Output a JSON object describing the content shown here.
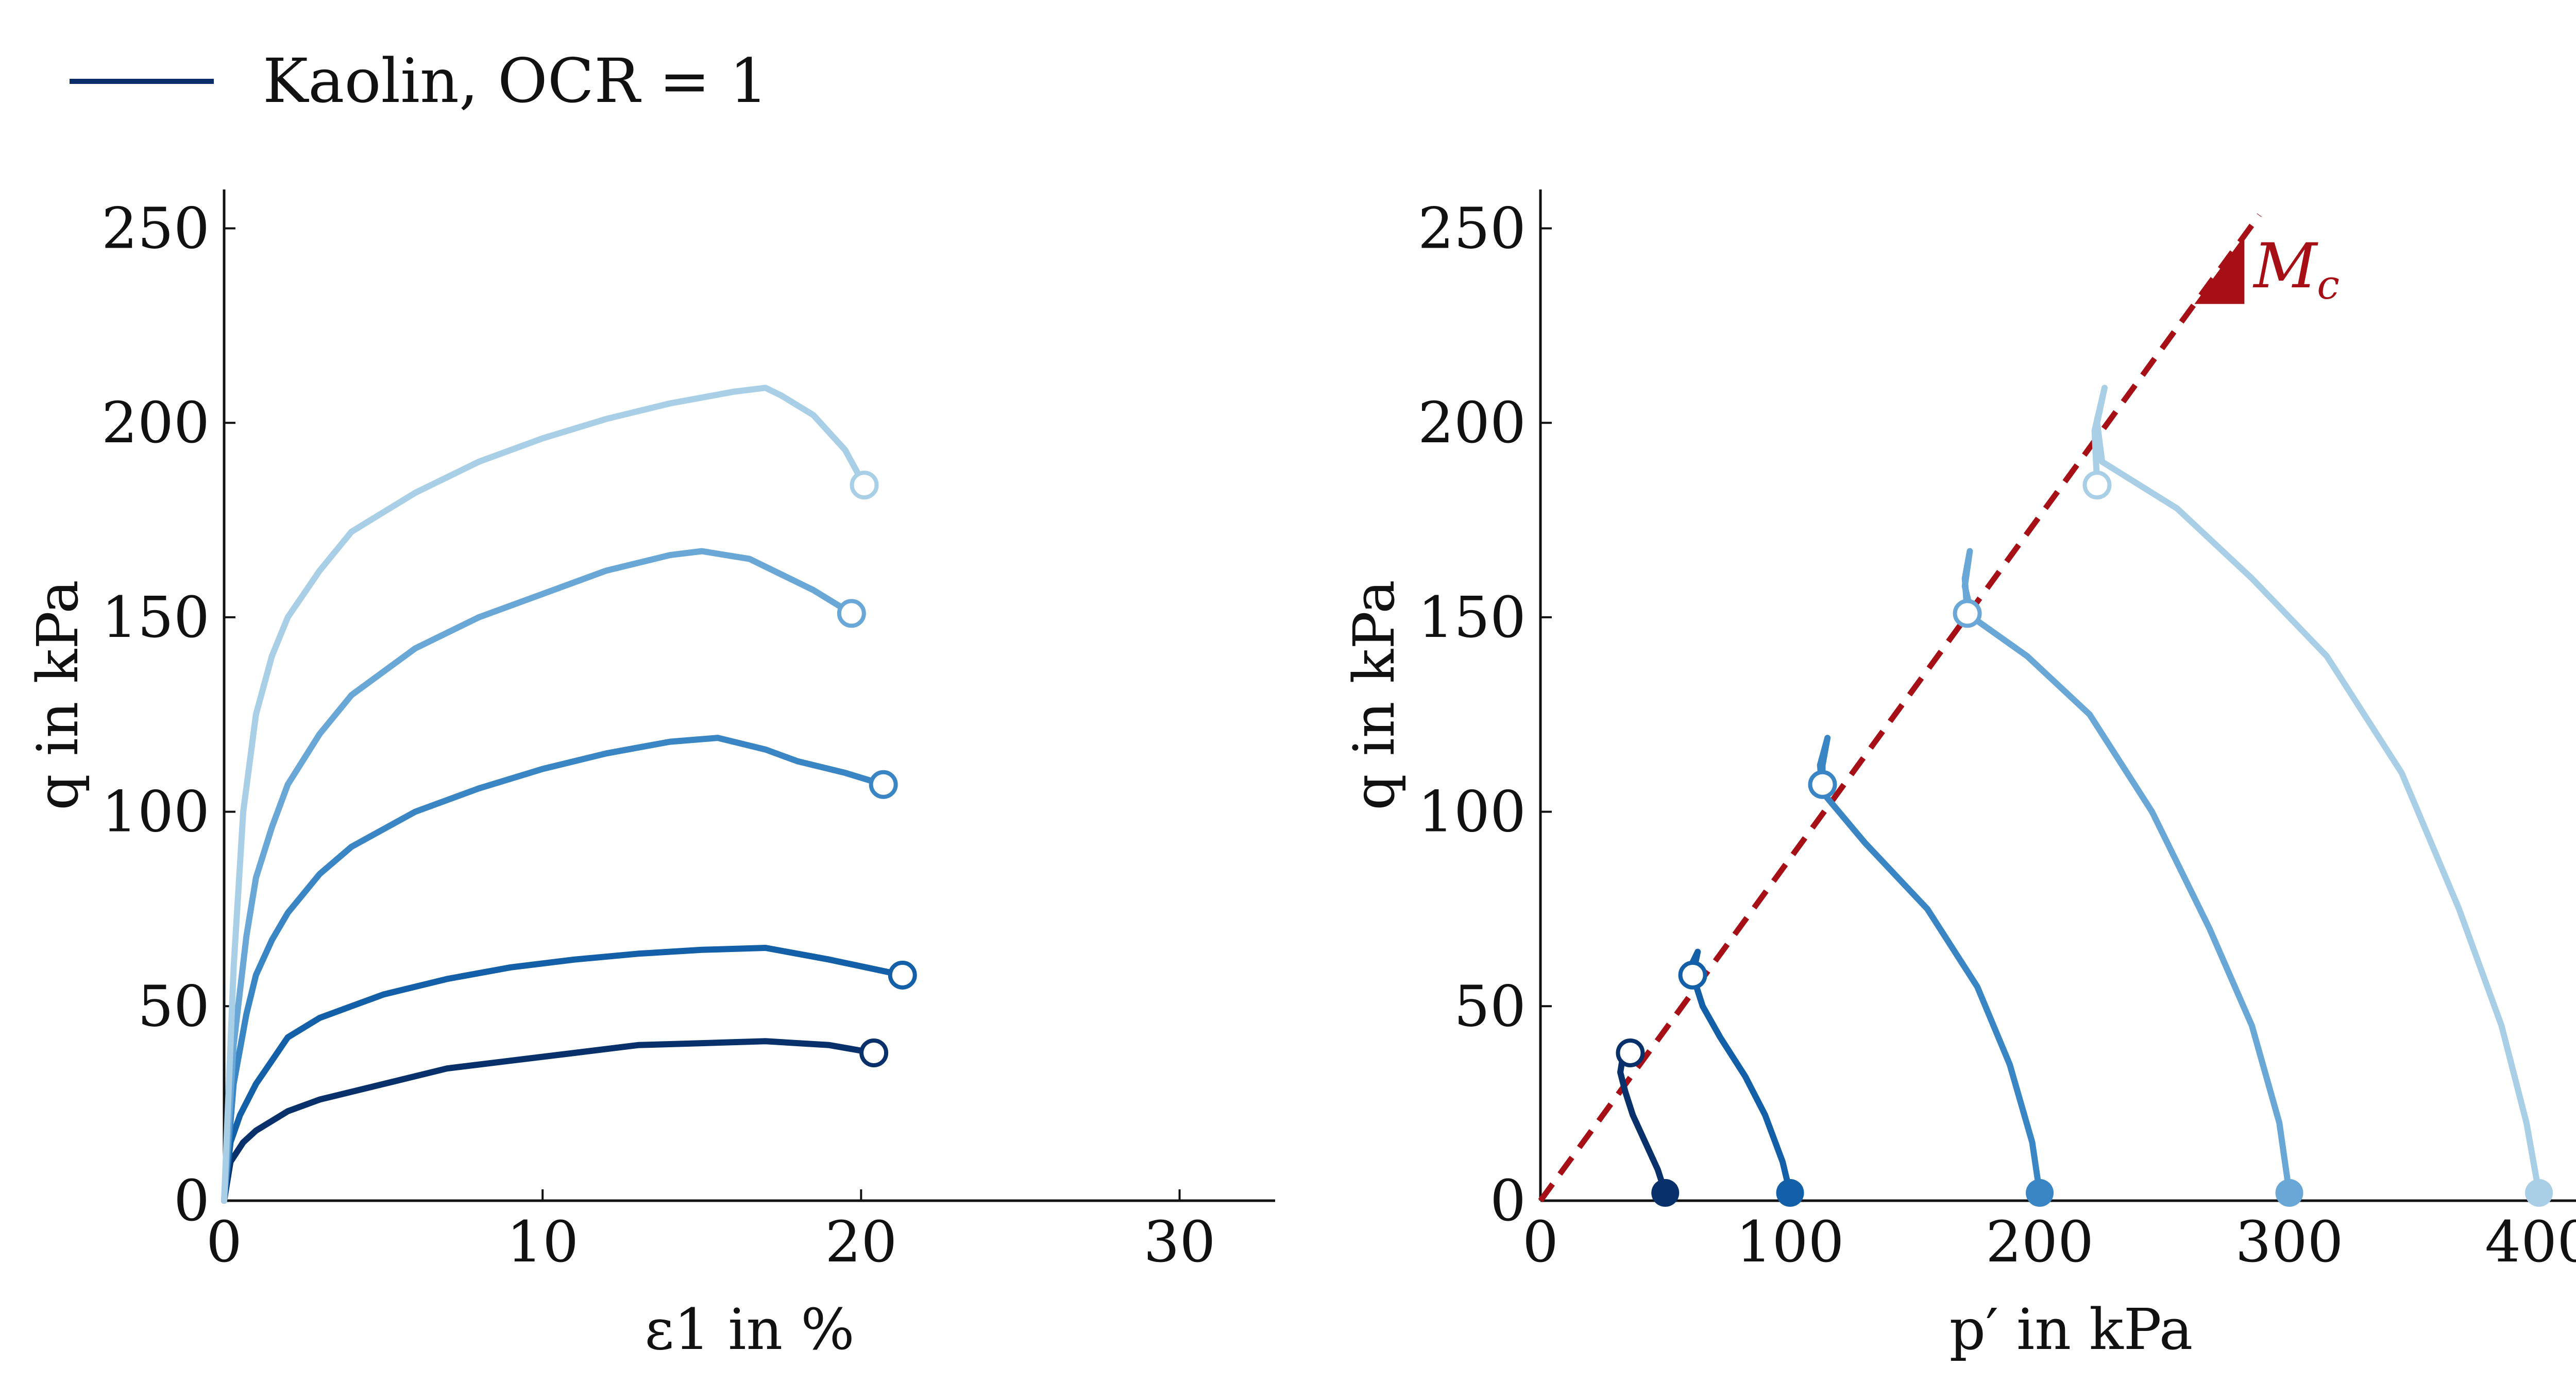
{
  "legend": {
    "label": "Kaolin, OCR = 1",
    "color": "#0b2e6b"
  },
  "colors": {
    "series": [
      "#08306b",
      "#135fa8",
      "#3a86c4",
      "#69a7d6",
      "#a9cfe7"
    ],
    "mc_line": "#a50f15"
  },
  "chart_data": [
    {
      "type": "line",
      "xlabel": "ε1 in %",
      "ylabel": "q in kPa",
      "xlim": [
        0,
        33
      ],
      "ylim": [
        0,
        260
      ],
      "xticks": [
        0,
        10,
        20,
        30
      ],
      "yticks": [
        0,
        50,
        100,
        150,
        200,
        250
      ],
      "grid": false,
      "series": [
        {
          "values": [
            [
              0,
              0
            ],
            [
              0.2,
              10
            ],
            [
              0.6,
              15
            ],
            [
              1,
              18
            ],
            [
              2,
              23
            ],
            [
              3,
              26
            ],
            [
              5,
              30
            ],
            [
              7,
              34
            ],
            [
              9,
              36
            ],
            [
              11,
              38
            ],
            [
              13,
              40
            ],
            [
              15,
              40.5
            ],
            [
              17,
              41
            ],
            [
              19,
              40
            ],
            [
              20.4,
              38
            ]
          ],
          "end_marker": [
            20.4,
            38
          ]
        },
        {
          "values": [
            [
              0,
              0
            ],
            [
              0.2,
              15
            ],
            [
              0.5,
              22
            ],
            [
              1,
              30
            ],
            [
              1.5,
              36
            ],
            [
              2,
              42
            ],
            [
              3,
              47
            ],
            [
              4,
              50
            ],
            [
              5,
              53
            ],
            [
              7,
              57
            ],
            [
              9,
              60
            ],
            [
              11,
              62
            ],
            [
              13,
              63.5
            ],
            [
              15,
              64.5
            ],
            [
              17,
              65
            ],
            [
              19,
              62
            ],
            [
              21.3,
              58
            ]
          ],
          "end_marker": [
            21.3,
            58
          ]
        },
        {
          "values": [
            [
              0,
              0
            ],
            [
              0.3,
              30
            ],
            [
              0.7,
              48
            ],
            [
              1,
              58
            ],
            [
              1.5,
              67
            ],
            [
              2,
              74
            ],
            [
              3,
              84
            ],
            [
              4,
              91
            ],
            [
              6,
              100
            ],
            [
              8,
              106
            ],
            [
              10,
              111
            ],
            [
              12,
              115
            ],
            [
              14,
              118
            ],
            [
              15.5,
              119
            ],
            [
              17,
              116
            ],
            [
              18,
              113
            ],
            [
              19.5,
              110
            ],
            [
              20.7,
              107
            ]
          ],
          "end_marker": [
            20.7,
            107
          ]
        },
        {
          "values": [
            [
              0,
              0
            ],
            [
              0.3,
              40
            ],
            [
              0.7,
              68
            ],
            [
              1,
              83
            ],
            [
              1.5,
              96
            ],
            [
              2,
              107
            ],
            [
              3,
              120
            ],
            [
              4,
              130
            ],
            [
              6,
              142
            ],
            [
              8,
              150
            ],
            [
              10,
              156
            ],
            [
              12,
              162
            ],
            [
              14,
              166
            ],
            [
              15,
              167
            ],
            [
              16.5,
              165
            ],
            [
              17.5,
              161
            ],
            [
              18.5,
              157
            ],
            [
              19.7,
              151
            ]
          ],
          "end_marker": [
            19.7,
            151
          ]
        },
        {
          "values": [
            [
              0,
              0
            ],
            [
              0.3,
              60
            ],
            [
              0.6,
              100
            ],
            [
              1,
              125
            ],
            [
              1.5,
              140
            ],
            [
              2,
              150
            ],
            [
              3,
              162
            ],
            [
              4,
              172
            ],
            [
              6,
              182
            ],
            [
              8,
              190
            ],
            [
              10,
              196
            ],
            [
              12,
              201
            ],
            [
              14,
              205
            ],
            [
              16,
              208
            ],
            [
              17,
              209
            ],
            [
              17.5,
              207
            ],
            [
              18.5,
              202
            ],
            [
              19.5,
              193
            ],
            [
              20.1,
              184
            ]
          ],
          "end_marker": [
            20.1,
            184
          ]
        }
      ]
    },
    {
      "type": "line",
      "xlabel": "p′ in kPa",
      "ylabel": "q in kPa",
      "xlim": [
        0,
        420
      ],
      "ylim": [
        0,
        260
      ],
      "xticks": [
        0,
        100,
        200,
        300,
        400
      ],
      "yticks": [
        0,
        50,
        100,
        150,
        200,
        250
      ],
      "grid": false,
      "critical_state_line": {
        "label": "Mc",
        "slope": 0.88,
        "x_range": [
          0,
          288
        ]
      },
      "series": [
        {
          "values": [
            [
              50,
              2
            ],
            [
              47,
              8
            ],
            [
              42,
              15
            ],
            [
              37,
              22
            ],
            [
              34,
              28
            ],
            [
              32,
              33
            ],
            [
              33,
              37
            ],
            [
              36,
              38
            ]
          ],
          "start_marker": [
            50,
            2
          ],
          "end_marker": [
            36,
            38
          ]
        },
        {
          "values": [
            [
              100,
              2
            ],
            [
              97,
              10
            ],
            [
              90,
              22
            ],
            [
              82,
              32
            ],
            [
              72,
              42
            ],
            [
              65,
              50
            ],
            [
              62,
              56
            ],
            [
              60,
              60
            ],
            [
              63,
              64
            ],
            [
              61,
              58
            ]
          ],
          "start_marker": [
            100,
            2
          ],
          "end_marker": [
            61,
            58
          ]
        },
        {
          "values": [
            [
              200,
              2
            ],
            [
              197,
              15
            ],
            [
              188,
              35
            ],
            [
              175,
              55
            ],
            [
              155,
              75
            ],
            [
              130,
              92
            ],
            [
              113,
              105
            ],
            [
              112,
              112
            ],
            [
              115,
              119
            ],
            [
              113,
              112
            ],
            [
              113,
              107
            ]
          ],
          "start_marker": [
            200,
            2
          ],
          "end_marker": [
            113,
            107
          ]
        },
        {
          "values": [
            [
              300,
              2
            ],
            [
              296,
              20
            ],
            [
              285,
              45
            ],
            [
              268,
              70
            ],
            [
              245,
              100
            ],
            [
              220,
              125
            ],
            [
              195,
              140
            ],
            [
              173,
              150
            ],
            [
              170,
              158
            ],
            [
              172,
              167
            ],
            [
              170,
              160
            ],
            [
              171,
              151
            ]
          ],
          "start_marker": [
            300,
            2
          ],
          "end_marker": [
            171,
            151
          ]
        },
        {
          "values": [
            [
              400,
              2
            ],
            [
              395,
              20
            ],
            [
              385,
              45
            ],
            [
              368,
              75
            ],
            [
              345,
              110
            ],
            [
              315,
              140
            ],
            [
              285,
              160
            ],
            [
              255,
              178
            ],
            [
              225,
              190
            ],
            [
              223,
              200
            ],
            [
              226,
              209
            ],
            [
              222,
              198
            ],
            [
              223,
              184
            ]
          ],
          "start_marker": [
            400,
            2
          ],
          "end_marker": [
            223,
            184
          ]
        }
      ]
    }
  ]
}
